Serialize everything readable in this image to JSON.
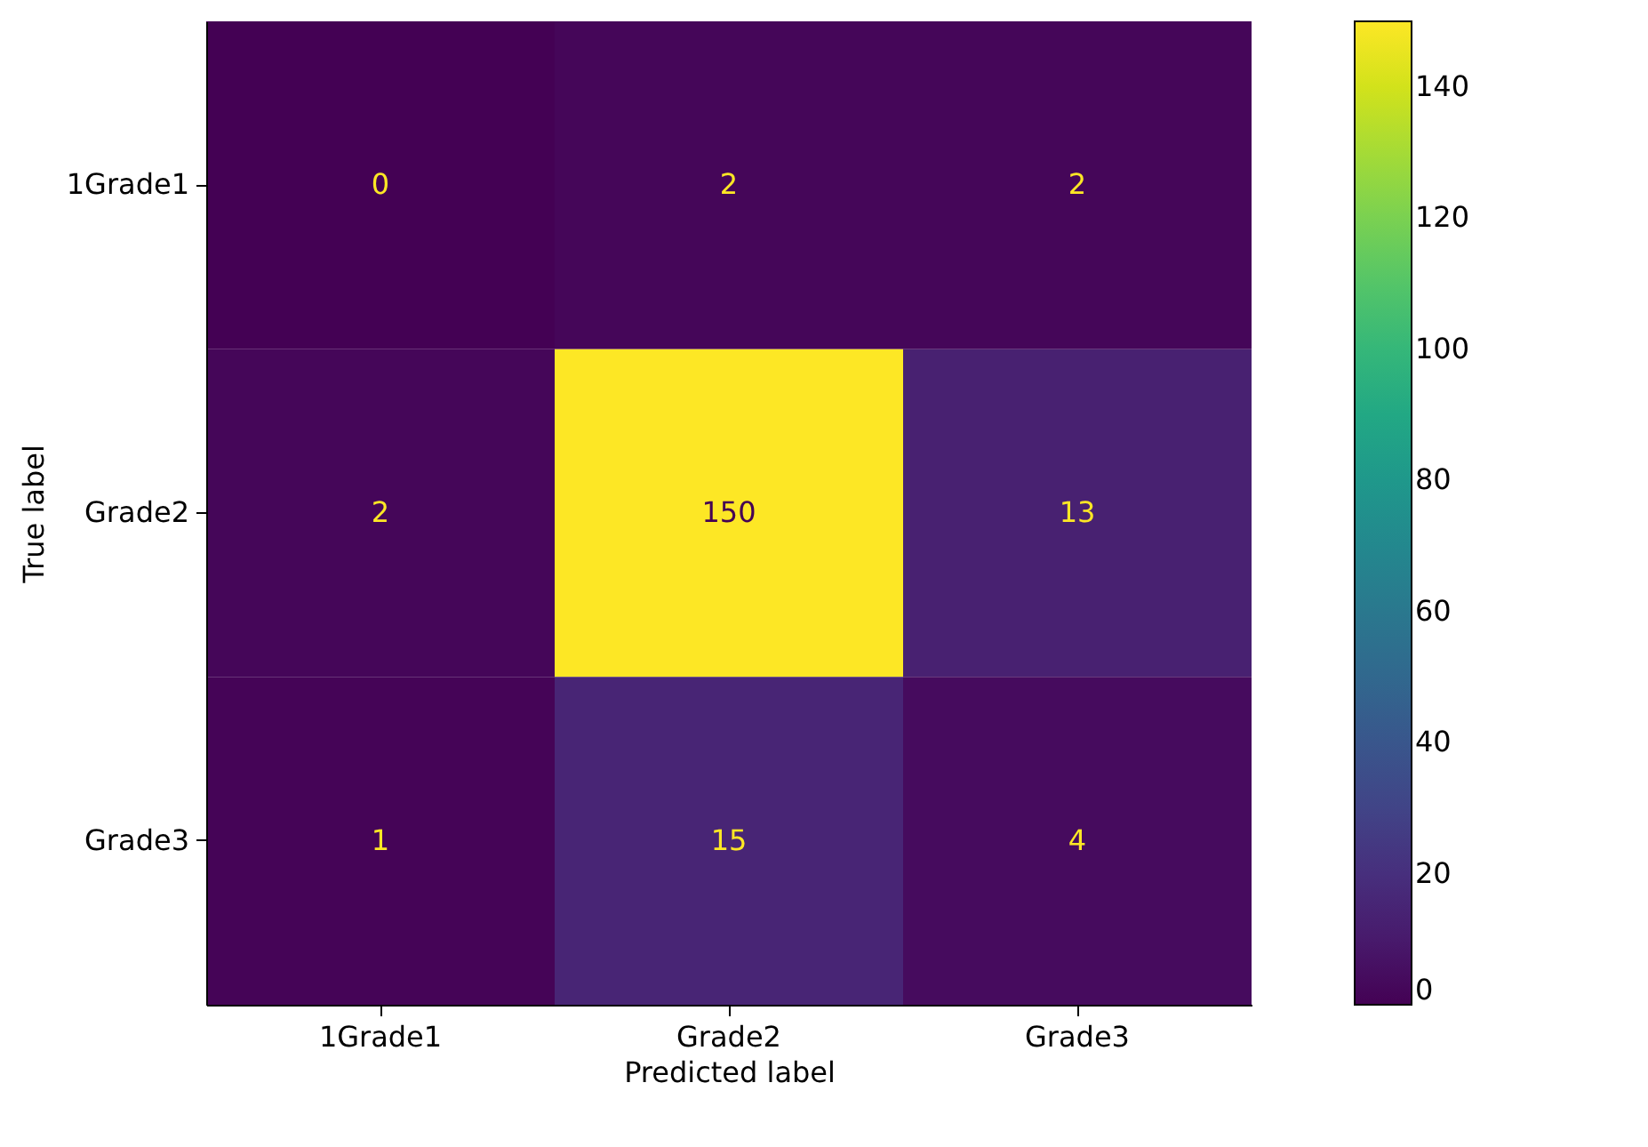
{
  "chart_data": {
    "type": "heatmap",
    "xlabel": "Predicted label",
    "ylabel": "True label",
    "categories": [
      "1Grade1",
      "Grade2",
      "Grade3"
    ],
    "y_categories": [
      "1Grade1",
      "Grade2",
      "Grade3"
    ],
    "cells": [
      [
        0,
        2,
        2
      ],
      [
        2,
        150,
        13
      ],
      [
        1,
        15,
        4
      ]
    ],
    "clim": [
      0,
      150
    ],
    "cticks": [
      0,
      20,
      40,
      60,
      80,
      100,
      120,
      140
    ],
    "data_labels": true
  }
}
